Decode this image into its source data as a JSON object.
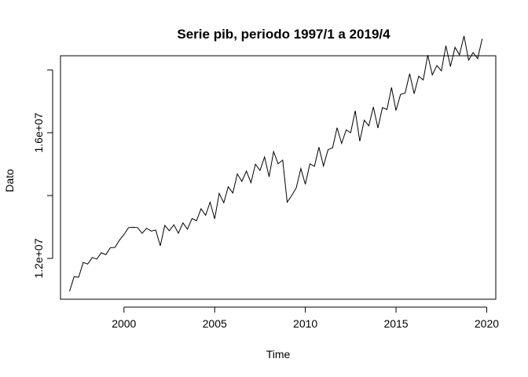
{
  "chart_data": {
    "type": "line",
    "title": "Serie pib, periodo 1997/1 a 2019/4",
    "xlabel": "Time",
    "ylabel": "Dato",
    "xlim": [
      1996.5,
      2020.5
    ],
    "ylim": [
      10700000,
      18450000
    ],
    "x_ticks": [
      2000,
      2005,
      2010,
      2015,
      2020
    ],
    "x_tick_labels": [
      "2000",
      "2005",
      "2010",
      "2015",
      "2020"
    ],
    "y_ticks": [
      12000000,
      16000000
    ],
    "y_tick_labels": [
      "1.2e+07",
      "1.6e+07"
    ],
    "y_minor_ticks": [
      14000000,
      18000000
    ],
    "grid": false,
    "legend": "none",
    "series": [
      {
        "start": 1997,
        "frequency": 4,
        "values": [
          10950000,
          11420000,
          11400000,
          11870000,
          11820000,
          12030000,
          11980000,
          12180000,
          12120000,
          12340000,
          12350000,
          12580000,
          12760000,
          12980000,
          12990000,
          12980000,
          12800000,
          12960000,
          12870000,
          12900000,
          12400000,
          13050000,
          12880000,
          13070000,
          12800000,
          13130000,
          12930000,
          13270000,
          13200000,
          13580000,
          13370000,
          13790000,
          13260000,
          14070000,
          13770000,
          14280000,
          14080000,
          14690000,
          14450000,
          14780000,
          14410000,
          15000000,
          14800000,
          15230000,
          14600000,
          15400000,
          15010000,
          15130000,
          13790000,
          14000000,
          14250000,
          14860000,
          14360000,
          15010000,
          14930000,
          15540000,
          14940000,
          15460000,
          15520000,
          16160000,
          15660000,
          16090000,
          16000000,
          16700000,
          15730000,
          16400000,
          16220000,
          16820000,
          16150000,
          16800000,
          16740000,
          17440000,
          16710000,
          17220000,
          17260000,
          17880000,
          17240000,
          17800000,
          17680000,
          18470000,
          17840000,
          18140000,
          17970000,
          18770000,
          18110000,
          18720000,
          18480000,
          19080000,
          18310000,
          18550000,
          18360000,
          18990000
        ]
      }
    ]
  }
}
